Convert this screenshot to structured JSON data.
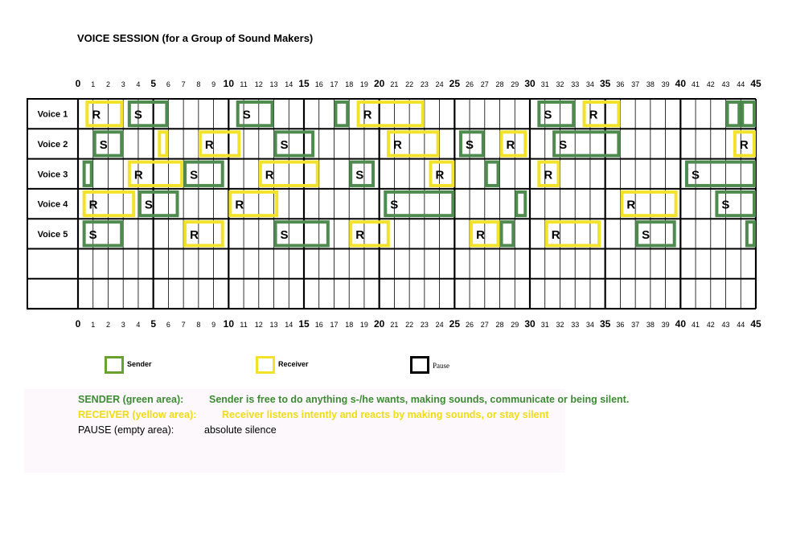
{
  "title": "VOICE SESSION (for a Group of Sound Makers)",
  "colors": {
    "sender": "#4f8a4f",
    "receiver": "#f2e22a",
    "pause": "#000000",
    "sender_text": "#3e8a35",
    "receiver_text": "#f0dc14"
  },
  "scale": {
    "start": 0,
    "end": 45,
    "major_every": 5
  },
  "rows": [
    {
      "label": "Voice 1",
      "blocks": [
        {
          "type": "R",
          "start": 0.5,
          "end": 3.0
        },
        {
          "type": "S",
          "start": 3.3,
          "end": 6.0
        },
        {
          "type": "S",
          "start": 10.5,
          "end": 13.0
        },
        {
          "type": "S",
          "start": 17.0,
          "end": 18.0
        },
        {
          "type": "R",
          "start": 18.5,
          "end": 23.0
        },
        {
          "type": "S",
          "start": 30.5,
          "end": 33.0
        },
        {
          "type": "R",
          "start": 33.5,
          "end": 36.0
        },
        {
          "type": "S",
          "start": 43.0,
          "end": 44.0
        },
        {
          "type": "S",
          "start": 44.0,
          "end": 45.0
        }
      ]
    },
    {
      "label": "Voice 2",
      "blocks": [
        {
          "type": "S",
          "start": 1.0,
          "end": 3.0
        },
        {
          "type": "R",
          "start": 5.3,
          "end": 6.0
        },
        {
          "type": "R",
          "start": 8.0,
          "end": 10.8
        },
        {
          "type": "S",
          "start": 13.0,
          "end": 15.7
        },
        {
          "type": "R",
          "start": 20.5,
          "end": 24.0
        },
        {
          "type": "S",
          "start": 25.3,
          "end": 27.0
        },
        {
          "type": "R",
          "start": 28.0,
          "end": 29.8
        },
        {
          "type": "S",
          "start": 31.5,
          "end": 36.0
        },
        {
          "type": "R",
          "start": 43.5,
          "end": 45.0
        }
      ]
    },
    {
      "label": "Voice 3",
      "blocks": [
        {
          "type": "S",
          "start": 0.3,
          "end": 1.0
        },
        {
          "type": "R",
          "start": 3.3,
          "end": 7.0
        },
        {
          "type": "S",
          "start": 7.0,
          "end": 9.7
        },
        {
          "type": "R",
          "start": 12.0,
          "end": 16.0
        },
        {
          "type": "S",
          "start": 18.0,
          "end": 19.7
        },
        {
          "type": "R",
          "start": 23.3,
          "end": 25.0
        },
        {
          "type": "S",
          "start": 27.0,
          "end": 28.0
        },
        {
          "type": "R",
          "start": 30.5,
          "end": 32.0
        },
        {
          "type": "S",
          "start": 40.3,
          "end": 45.0
        }
      ]
    },
    {
      "label": "Voice 4",
      "blocks": [
        {
          "type": "R",
          "start": 0.3,
          "end": 3.8
        },
        {
          "type": "S",
          "start": 4.0,
          "end": 6.7
        },
        {
          "type": "R",
          "start": 10.0,
          "end": 13.3
        },
        {
          "type": "S",
          "start": 20.3,
          "end": 25.0
        },
        {
          "type": "S",
          "start": 29.0,
          "end": 29.8
        },
        {
          "type": "R",
          "start": 36.0,
          "end": 39.8
        },
        {
          "type": "S",
          "start": 42.3,
          "end": 45.0
        }
      ]
    },
    {
      "label": "Voice 5",
      "blocks": [
        {
          "type": "S",
          "start": 0.3,
          "end": 3.0
        },
        {
          "type": "R",
          "start": 7.0,
          "end": 9.7
        },
        {
          "type": "S",
          "start": 13.0,
          "end": 16.7
        },
        {
          "type": "R",
          "start": 18.0,
          "end": 20.7
        },
        {
          "type": "R",
          "start": 26.0,
          "end": 28.0
        },
        {
          "type": "S",
          "start": 28.0,
          "end": 29.0
        },
        {
          "type": "R",
          "start": 31.0,
          "end": 34.7
        },
        {
          "type": "S",
          "start": 37.0,
          "end": 39.7
        },
        {
          "type": "S",
          "start": 44.3,
          "end": 45.0
        }
      ]
    },
    {
      "label": "",
      "blocks": []
    },
    {
      "label": "",
      "blocks": []
    }
  ],
  "legend": [
    {
      "key": "sender",
      "label": "Sender"
    },
    {
      "key": "receiver",
      "label": "Receiver"
    },
    {
      "key": "pause",
      "label": "Pause"
    }
  ],
  "descriptions": {
    "sender": {
      "term": "SENDER (green area):",
      "text": "Sender is free to do anything s-/he wants, making sounds, communicate or being silent."
    },
    "receiver": {
      "term": "RECEIVER (yellow area):",
      "text": "Receiver listens intently and reacts by making sounds, or stay silent"
    },
    "pause": {
      "term": "PAUSE (empty area):",
      "text": "absolute silence"
    }
  }
}
